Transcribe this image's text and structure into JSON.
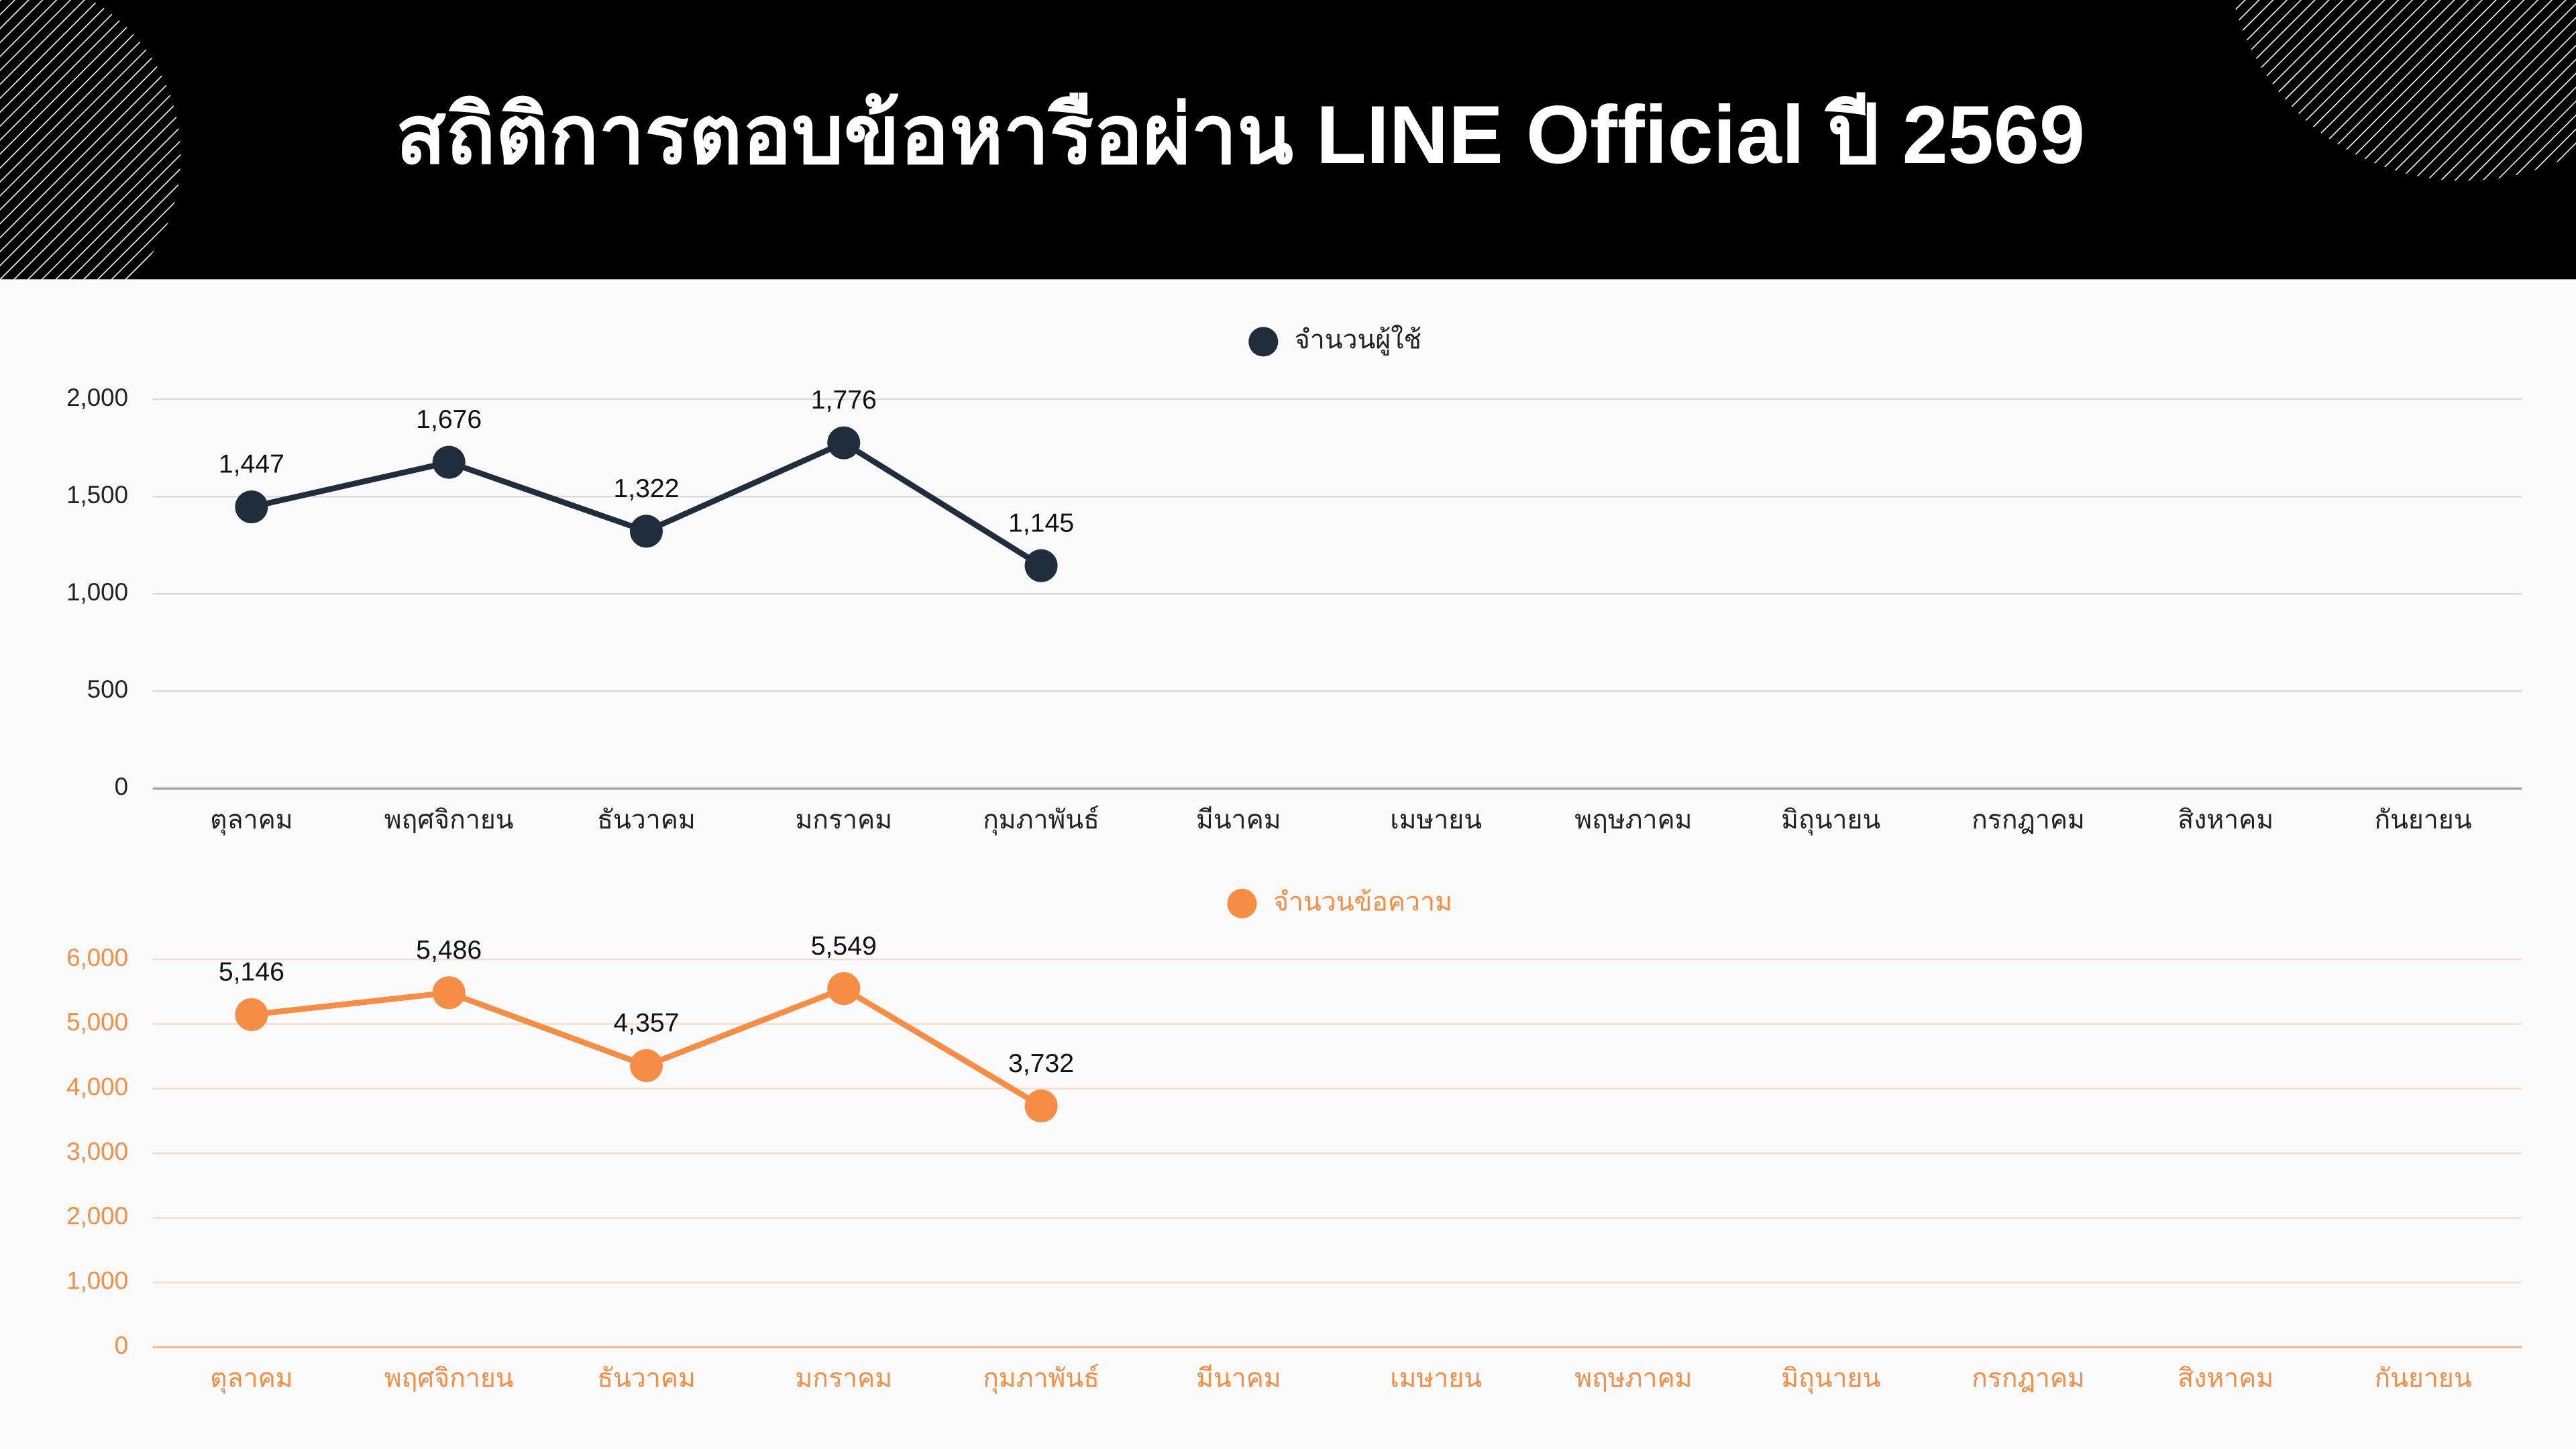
{
  "header": {
    "title": "สถิติการตอบข้อหารือผ่าน LINE Official ปี 2569"
  },
  "chart_data": [
    {
      "type": "line",
      "categories": [
        "ตุลาคม",
        "พฤศจิกายน",
        "ธันวาคม",
        "มกราคม",
        "กุมภาพันธ์",
        "มีนาคม",
        "เมษายน",
        "พฤษภาคม",
        "มิถุนายน",
        "กรกฎาคม",
        "สิงหาคม",
        "กันยายน"
      ],
      "series": [
        {
          "name": "จำนวนผู้ใช้",
          "color": "#1f2d3d",
          "values": [
            1447,
            1676,
            1322,
            1776,
            1145,
            null,
            null,
            null,
            null,
            null,
            null,
            null
          ],
          "value_labels": [
            "1,447",
            "1,676",
            "1,322",
            "1,776",
            "1,145",
            null,
            null,
            null,
            null,
            null,
            null,
            null
          ]
        }
      ],
      "ylim": [
        0,
        2000
      ],
      "yticks": [
        0,
        500,
        {
          "value": 1000,
          "label": "1,000"
        },
        {
          "value": 1500,
          "label": "1,500"
        },
        {
          "value": 2000,
          "label": "2,000"
        }
      ],
      "grid": true
    },
    {
      "type": "line",
      "categories": [
        "ตุลาคม",
        "พฤศจิกายน",
        "ธันวาคม",
        "มกราคม",
        "กุมภาพันธ์",
        "มีนาคม",
        "เมษายน",
        "พฤษภาคม",
        "มิถุนายน",
        "กรกฎาคม",
        "สิงหาคม",
        "กันยายน"
      ],
      "series": [
        {
          "name": "จำนวนข้อความ",
          "color": "#f58d45",
          "values": [
            5146,
            5486,
            4357,
            5549,
            3732,
            null,
            null,
            null,
            null,
            null,
            null,
            null
          ],
          "value_labels": [
            "5,146",
            "5,486",
            "4,357",
            "5,549",
            "3,732",
            null,
            null,
            null,
            null,
            null,
            null,
            null
          ]
        }
      ],
      "ylim": [
        0,
        6000
      ],
      "yticks": [
        0,
        {
          "value": 1000,
          "label": "1,000"
        },
        {
          "value": 2000,
          "label": "2,000"
        },
        {
          "value": 3000,
          "label": "3,000"
        },
        {
          "value": 4000,
          "label": "4,000"
        },
        {
          "value": 5000,
          "label": "5,000"
        },
        {
          "value": 6000,
          "label": "6,000"
        }
      ],
      "grid": true
    }
  ]
}
